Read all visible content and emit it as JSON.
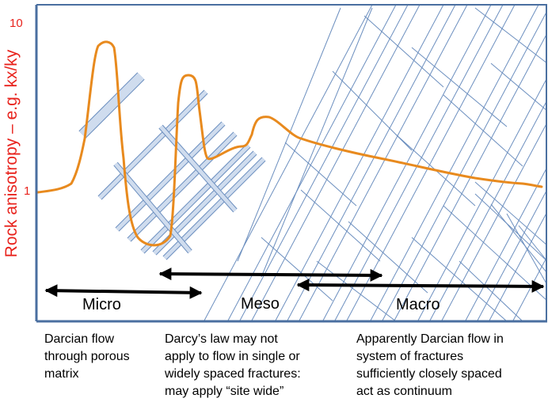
{
  "y_axis": {
    "label": "Rock anisotropy – e.g. kx/ky",
    "ticks": [
      "10",
      "1"
    ]
  },
  "scales": {
    "micro": "Micro",
    "meso": "Meso",
    "macro": "Macro"
  },
  "captions": {
    "micro": [
      "Darcian flow",
      "through porous",
      "matrix"
    ],
    "meso": [
      "Darcy’s law may not",
      "apply to flow  in single or",
      "widely spaced fractures:",
      "may apply “site wide”"
    ],
    "macro": [
      "Apparently Darcian flow in",
      "system of  fractures",
      "sufficiently closely spaced",
      "act as continuum"
    ]
  },
  "colors": {
    "axis": "#4a6fa0",
    "curve": "#e88a1e",
    "fracture_lines": "#6c8fbf",
    "fracture_fill": "#cfdcee",
    "label_red": "#e8231d"
  }
}
